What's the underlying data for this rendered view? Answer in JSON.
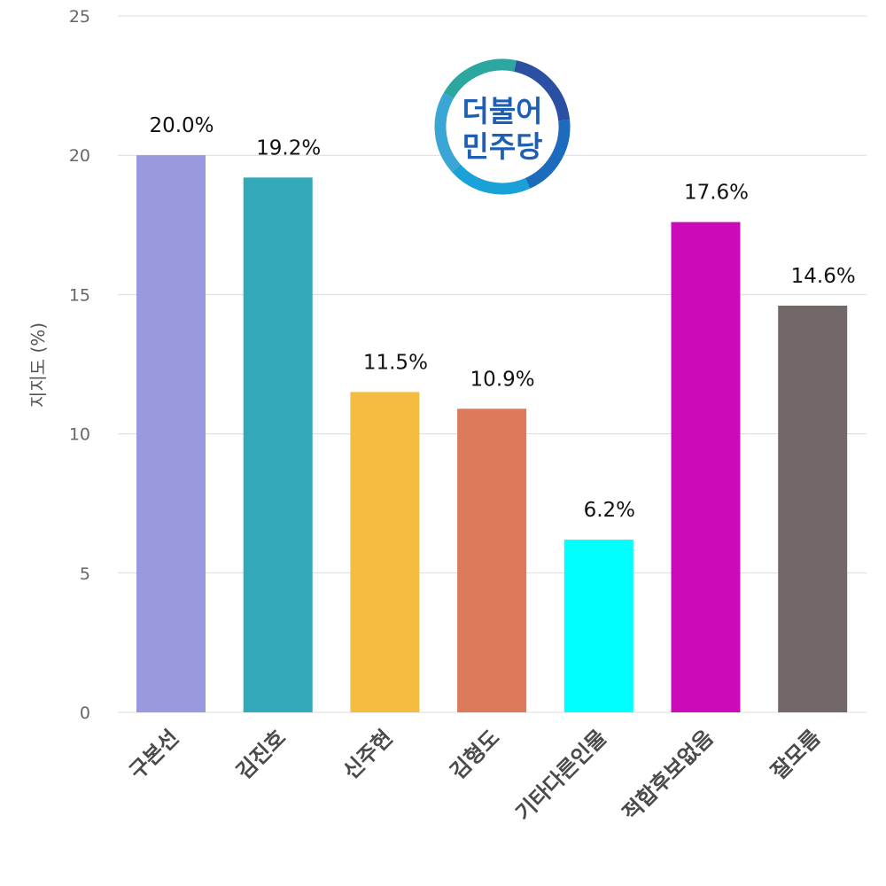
{
  "chart_data": {
    "type": "bar",
    "categories": [
      "구본선",
      "김진호",
      "신주현",
      "김형도",
      "기타다른인물",
      "적합후보없음",
      "잘모름"
    ],
    "values": [
      20.0,
      19.2,
      11.5,
      10.9,
      6.2,
      17.6,
      14.6
    ],
    "data_labels": [
      "20.0%",
      "19.2%",
      "11.5%",
      "10.9%",
      "6.2%",
      "17.6%",
      "14.6%"
    ],
    "colors": [
      "#9999e0",
      "#31a9b8",
      "#f4bd42",
      "#dd7a5c",
      "#00ffff",
      "#cc0bb8",
      "#716867"
    ],
    "ylabel": "지지도 (%)",
    "xlabel": "",
    "ylim": [
      0,
      25
    ],
    "yticks": [
      0,
      5,
      10,
      15,
      20,
      25
    ],
    "grid": true,
    "legend": "none"
  },
  "logo": {
    "lines": [
      "더불어",
      "민주당"
    ],
    "ring_colors": [
      "#2ca7a0",
      "#2b4fa3",
      "#1d6bbd",
      "#19a1d8",
      "#3aa6d6"
    ]
  }
}
